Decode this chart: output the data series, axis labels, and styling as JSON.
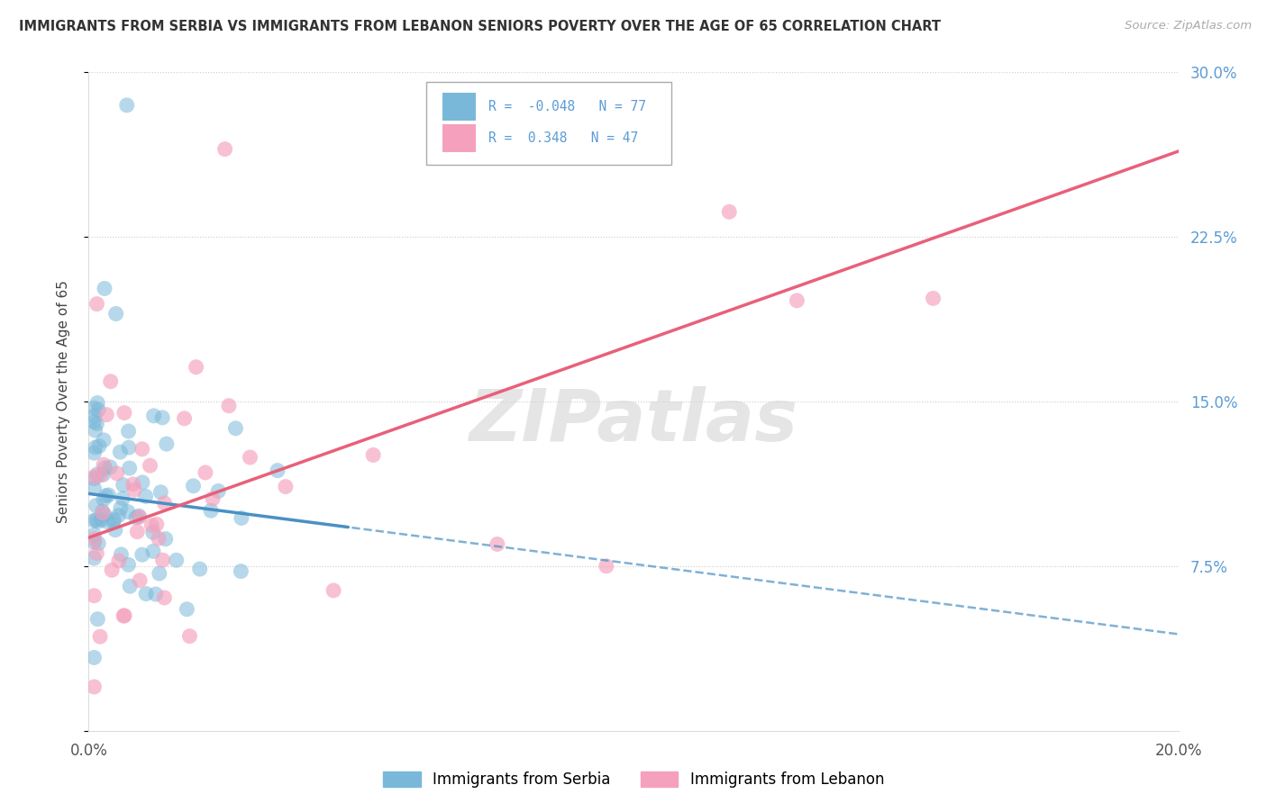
{
  "title": "IMMIGRANTS FROM SERBIA VS IMMIGRANTS FROM LEBANON SENIORS POVERTY OVER THE AGE OF 65 CORRELATION CHART",
  "source": "Source: ZipAtlas.com",
  "ylabel": "Seniors Poverty Over the Age of 65",
  "xlim": [
    0.0,
    0.2
  ],
  "ylim": [
    0.0,
    0.3
  ],
  "ytick_vals": [
    0.0,
    0.075,
    0.15,
    0.225,
    0.3
  ],
  "ytick_labels_right": [
    "",
    "7.5%",
    "15.0%",
    "22.5%",
    "30.0%"
  ],
  "xtick_vals": [
    0.0,
    0.2
  ],
  "xtick_labels": [
    "0.0%",
    "20.0%"
  ],
  "serbia_color": "#7ab8d9",
  "lebanon_color": "#f5a0bc",
  "serbia_R": -0.048,
  "serbia_N": 77,
  "lebanon_R": 0.348,
  "lebanon_N": 47,
  "serbia_line_color": "#4a90c4",
  "lebanon_line_color": "#e8607a",
  "watermark": "ZIPatlas",
  "watermark_color": "#d5d5d5",
  "legend_label_serbia": "Immigrants from Serbia",
  "legend_label_lebanon": "Immigrants from Lebanon",
  "tick_color": "#5b9cd6",
  "grid_color": "#cccccc",
  "serbia_intercept": 0.108,
  "serbia_slope": -0.32,
  "lebanon_intercept": 0.088,
  "lebanon_slope": 0.88
}
